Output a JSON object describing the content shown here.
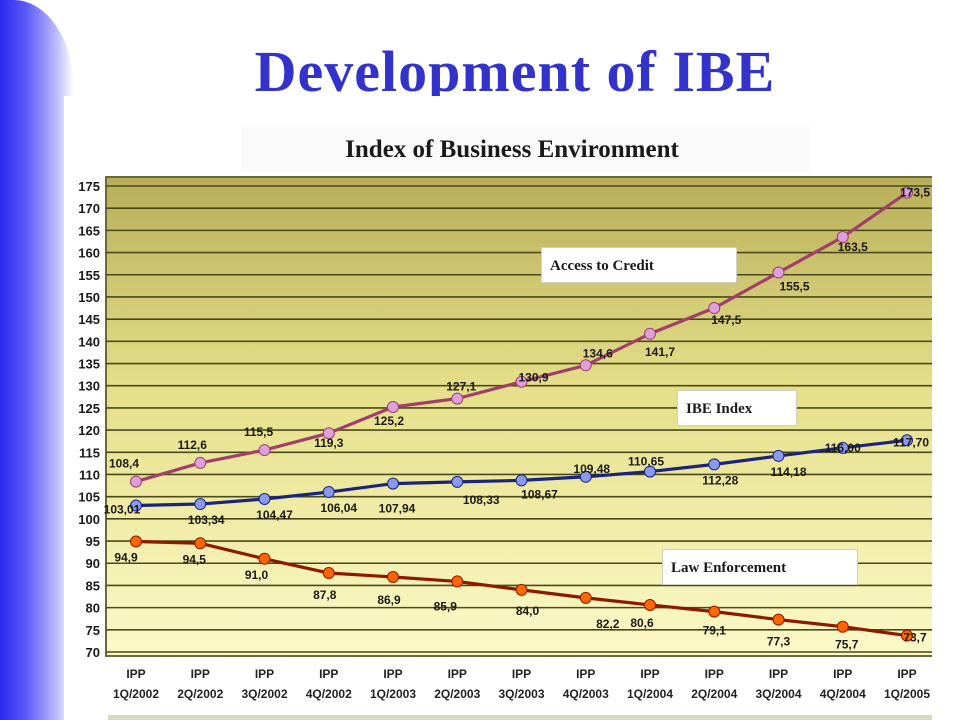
{
  "slide": {
    "title": "Development of IBE"
  },
  "chart_data": {
    "type": "line",
    "title": "Index of Business Environment",
    "xlabel": "",
    "ylabel": "",
    "categories": [
      "IPP 1Q/2002",
      "IPP 2Q/2002",
      "IPP 3Q/2002",
      "IPP 4Q/2002",
      "IPP 1Q/2003",
      "IPP 2Q/2003",
      "IPP 3Q/2003",
      "IPP 4Q/2003",
      "IPP 1Q/2004",
      "IPP 2Q/2004",
      "IPP 3Q/2004",
      "IPP 4Q/2004",
      "IPP 1Q/2005"
    ],
    "category_lines": [
      [
        "IPP",
        "1Q/2002"
      ],
      [
        "IPP",
        "2Q/2002"
      ],
      [
        "IPP",
        "3Q/2002"
      ],
      [
        "IPP",
        "4Q/2002"
      ],
      [
        "IPP",
        "1Q/2003"
      ],
      [
        "IPP",
        "2Q/2003"
      ],
      [
        "IPP",
        "3Q/2003"
      ],
      [
        "IPP",
        "4Q/2003"
      ],
      [
        "IPP",
        "1Q/2004"
      ],
      [
        "IPP",
        "2Q/2004"
      ],
      [
        "IPP",
        "3Q/2004"
      ],
      [
        "IPP",
        "4Q/2004"
      ],
      [
        "IPP",
        "1Q/2005"
      ]
    ],
    "ylim": [
      70,
      175
    ],
    "yticks": [
      70,
      75,
      80,
      85,
      90,
      95,
      100,
      105,
      110,
      115,
      120,
      125,
      130,
      135,
      140,
      145,
      150,
      155,
      160,
      165,
      170,
      175
    ],
    "grid": true,
    "series": [
      {
        "name": "Access to Credit",
        "color": "#a0406a",
        "marker_color": "#dda0dd",
        "values": [
          108.4,
          112.6,
          115.5,
          119.3,
          125.2,
          127.1,
          130.9,
          134.6,
          141.7,
          147.5,
          155.5,
          163.5,
          173.5
        ],
        "labels": [
          "108,4",
          "112,6",
          "115,5",
          "119,3",
          "125,2",
          "127,1",
          "130,9",
          "134,6",
          "141,7",
          "147,5",
          "155,5",
          "163,5",
          "173,5"
        ]
      },
      {
        "name": "IBE Index",
        "color": "#1a237e",
        "marker_color": "#8899ee",
        "values": [
          103.01,
          103.34,
          104.47,
          106.04,
          107.94,
          108.33,
          108.67,
          109.48,
          110.65,
          112.28,
          114.18,
          116.0,
          117.7
        ],
        "labels": [
          "103,01",
          "103,34",
          "104,47",
          "106,04",
          "107,94",
          "108,33",
          "108,67",
          "109,48",
          "110,65",
          "112,28",
          "114,18",
          "116,00",
          "117,70"
        ]
      },
      {
        "name": "Law Enforcement",
        "color": "#8b1a00",
        "marker_color": "#ff6600",
        "values": [
          94.9,
          94.5,
          91.0,
          87.8,
          86.9,
          85.9,
          84.0,
          82.2,
          80.6,
          79.1,
          77.3,
          75.7,
          73.7
        ],
        "labels": [
          "94,9",
          "94,5",
          "91,0",
          "87,8",
          "86,9",
          "85,9",
          "84,0",
          "82,2",
          "80,6",
          "79,1",
          "77,3",
          "75,7",
          "73,7"
        ]
      }
    ],
    "legend": [
      "Access to Credit",
      "IBE Index",
      "Law Enforcement"
    ]
  }
}
